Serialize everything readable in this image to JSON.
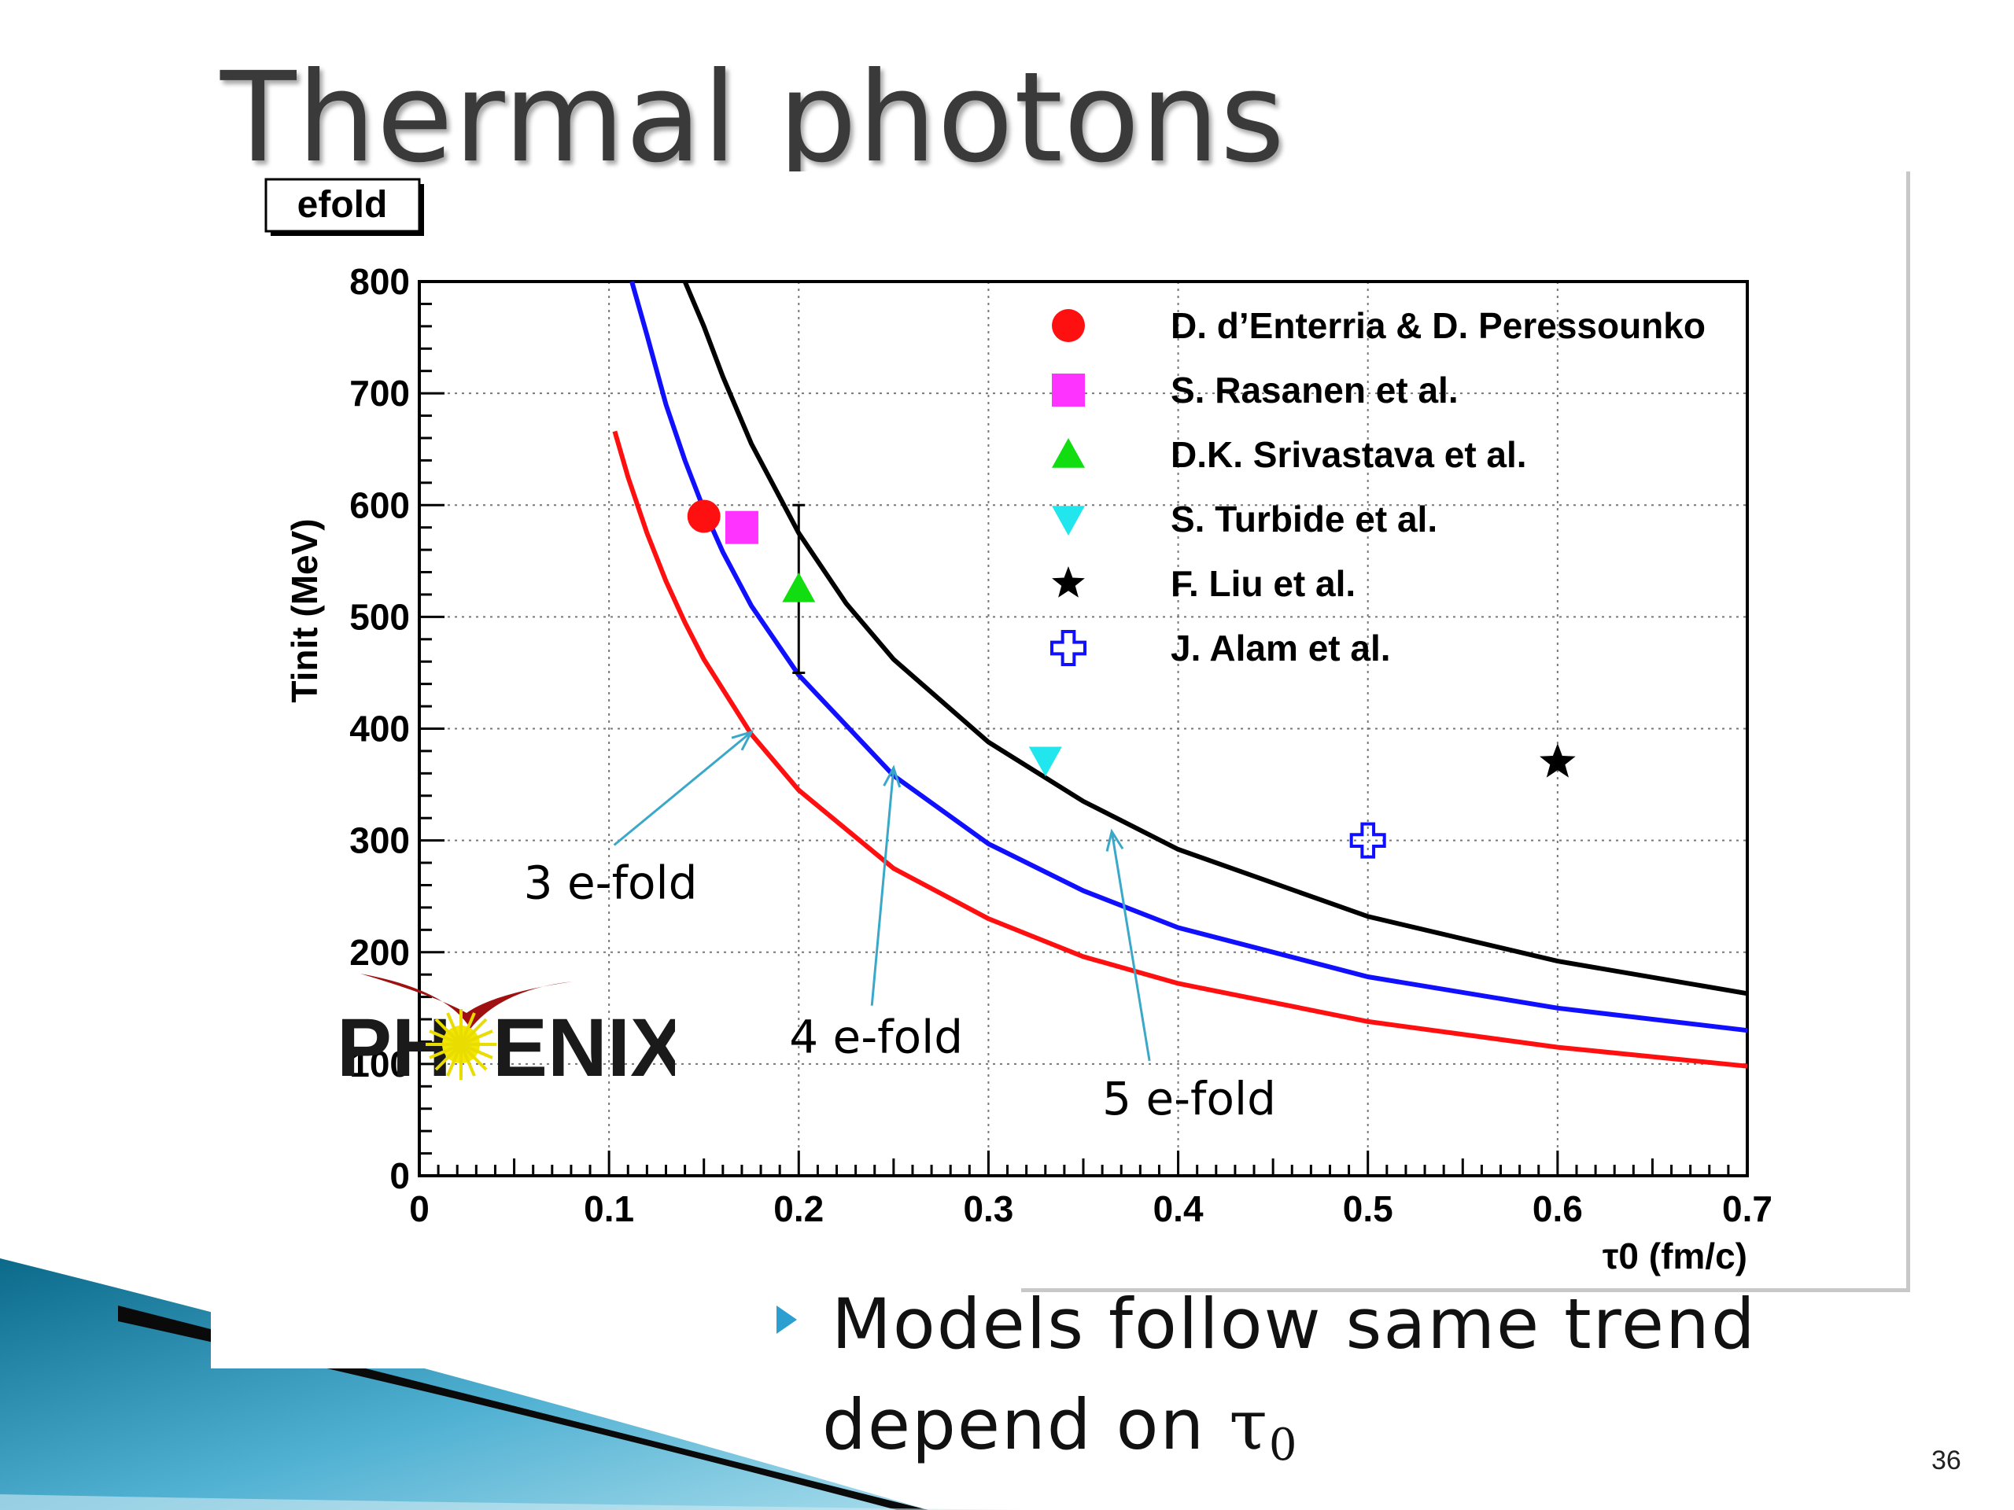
{
  "slide": {
    "title": "Thermal photons",
    "bullet_line1": "Models follow same trend",
    "bullet_line2_prefix": "depend on ",
    "bullet_tau": "τ",
    "bullet_tau_sub": "0",
    "page_number": "36"
  },
  "logo": {
    "text_left": "PH",
    "text_right": "ENIX"
  },
  "colors": {
    "red": "#ff1010",
    "blue": "#1010ff",
    "black": "#000000",
    "magenta": "#ff33ff",
    "green": "#11dd11",
    "cyan": "#22e6ee",
    "arrow": "#3aa8c8",
    "swoosh_dark": "#0b6a8a",
    "swoosh_light": "#7cc7e0"
  },
  "chart_data": {
    "type": "scatter",
    "canvas_label": "efold",
    "xlabel": "τ0 (fm/c)",
    "ylabel": "Tinit (MeV)",
    "xlim": [
      0,
      0.7
    ],
    "ylim": [
      0,
      800
    ],
    "xticks": [
      0,
      0.1,
      0.2,
      0.3,
      0.4,
      0.5,
      0.6,
      0.7
    ],
    "xtick_labels": [
      "0",
      "0.1",
      "0.2",
      "0.3",
      "0.4",
      "0.5",
      "0.6",
      "0.7"
    ],
    "yticks": [
      0,
      100,
      200,
      300,
      400,
      500,
      600,
      700,
      800
    ],
    "ytick_labels": [
      "0",
      "100",
      "200",
      "300",
      "400",
      "500",
      "600",
      "700",
      "800"
    ],
    "grid": true,
    "legend_position": "top-right",
    "curves": [
      {
        "name": "3 e-fold",
        "color": "red",
        "x": [
          0.103,
          0.11,
          0.12,
          0.13,
          0.14,
          0.15,
          0.175,
          0.2,
          0.25,
          0.3,
          0.35,
          0.4,
          0.5,
          0.6,
          0.7
        ],
        "y": [
          666,
          625,
          575,
          532,
          495,
          462,
          395,
          345,
          275,
          230,
          196,
          172,
          138,
          115,
          98
        ]
      },
      {
        "name": "4 e-fold",
        "color": "blue",
        "x": [
          0.112,
          0.12,
          0.13,
          0.14,
          0.15,
          0.16,
          0.175,
          0.2,
          0.25,
          0.3,
          0.35,
          0.4,
          0.5,
          0.6,
          0.7
        ],
        "y": [
          800,
          752,
          690,
          640,
          596,
          558,
          510,
          448,
          358,
          297,
          255,
          222,
          178,
          150,
          130
        ]
      },
      {
        "name": "5 e-fold",
        "color": "black",
        "x": [
          0.14,
          0.15,
          0.16,
          0.175,
          0.2,
          0.225,
          0.25,
          0.3,
          0.35,
          0.4,
          0.5,
          0.6,
          0.7
        ],
        "y": [
          800,
          760,
          715,
          655,
          575,
          512,
          462,
          388,
          335,
          292,
          232,
          192,
          163
        ]
      }
    ],
    "curve_labels": [
      {
        "text": "3 e-fold",
        "x": 0.055,
        "y": 248,
        "arrow_to": [
          0.175,
          397
        ]
      },
      {
        "text": "4 e-fold",
        "x": 0.195,
        "y": 110,
        "arrow_to": [
          0.25,
          365
        ]
      },
      {
        "text": "5 e-fold",
        "x": 0.36,
        "y": 55,
        "arrow_to": [
          0.365,
          308
        ]
      }
    ],
    "series": [
      {
        "name": "D. d’Enterria & D. Peressounko",
        "marker": "circle",
        "color": "red",
        "x": [
          0.15
        ],
        "y": [
          590
        ]
      },
      {
        "name": "S. Rasanen et al.",
        "marker": "square",
        "color": "magenta",
        "x": [
          0.17
        ],
        "y": [
          580
        ]
      },
      {
        "name": "D.K. Srivastava et al.",
        "marker": "triangle-up",
        "color": "green",
        "x": [
          0.2
        ],
        "y": [
          525
        ],
        "yerr_low": [
          450
        ],
        "yerr_high": [
          600
        ]
      },
      {
        "name": "S. Turbide et al.",
        "marker": "triangle-down",
        "color": "cyan",
        "x": [
          0.33
        ],
        "y": [
          372
        ]
      },
      {
        "name": "F. Liu et al.",
        "marker": "star",
        "color": "black",
        "x": [
          0.6
        ],
        "y": [
          370
        ]
      },
      {
        "name": "J. Alam et al.",
        "marker": "open-cross",
        "color": "blue",
        "x": [
          0.5
        ],
        "y": [
          300
        ]
      }
    ]
  }
}
